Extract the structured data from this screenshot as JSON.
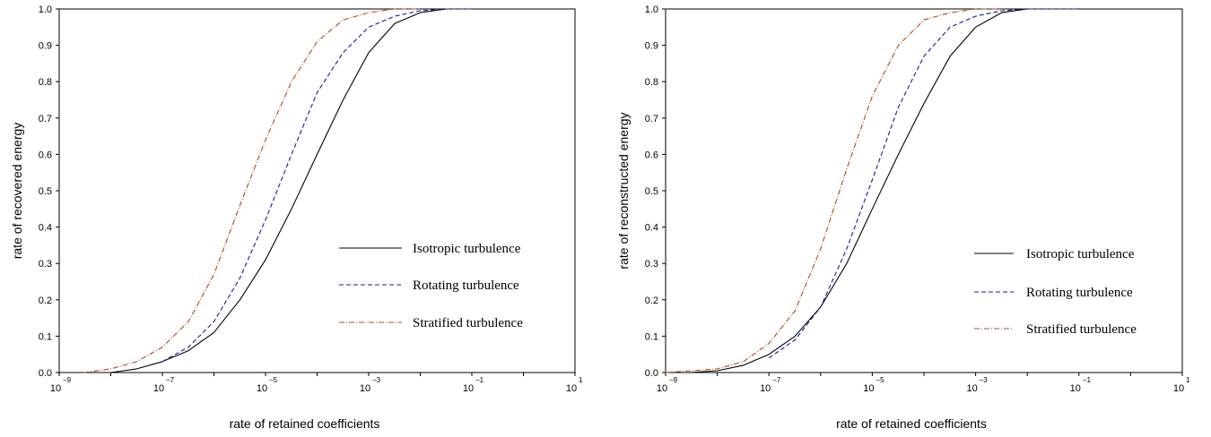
{
  "chart_data": [
    {
      "type": "line",
      "xlabel": "rate of retained coefficients",
      "ylabel": "rate of recovered energy",
      "x_scale": "log",
      "xlim": [
        1e-09,
        10
      ],
      "ylim": [
        0,
        1.0
      ],
      "x_tick_labels": [
        {
          "base": "10",
          "exp": "−9"
        },
        {
          "base": "10",
          "exp": "−7"
        },
        {
          "base": "10",
          "exp": "−5"
        },
        {
          "base": "10",
          "exp": "−3"
        },
        {
          "base": "10",
          "exp": "−1"
        },
        {
          "base": "10",
          "exp": "1"
        }
      ],
      "y_tick_labels": [
        "0.0",
        "0.1",
        "0.2",
        "0.3",
        "0.4",
        "0.5",
        "0.6",
        "0.7",
        "0.8",
        "0.9",
        "1.0"
      ],
      "legend_position": "lower-right",
      "grid": false,
      "series": [
        {
          "name": "Isotropic turbulence",
          "color": "#000000",
          "dash": "solid",
          "x": [
            1e-08,
            3.2e-08,
            1e-07,
            3.2e-07,
            1e-06,
            3.2e-06,
            1e-05,
            3.2e-05,
            0.0001,
            0.00032,
            0.001,
            0.0032,
            0.01,
            0.032,
            0.1,
            1
          ],
          "y": [
            0.0,
            0.01,
            0.03,
            0.06,
            0.11,
            0.2,
            0.31,
            0.45,
            0.6,
            0.75,
            0.88,
            0.96,
            0.99,
            1.0,
            1.0,
            1.0
          ]
        },
        {
          "name": "Rotating turbulence",
          "color": "#1a1aa0",
          "dash": "dashed",
          "x": [
            1e-07,
            3.2e-07,
            1e-06,
            3.2e-06,
            1e-05,
            3.2e-05,
            0.0001,
            0.00032,
            0.001,
            0.0032,
            0.01,
            0.032,
            0.1
          ],
          "y": [
            0.03,
            0.07,
            0.14,
            0.26,
            0.42,
            0.6,
            0.77,
            0.88,
            0.95,
            0.98,
            0.995,
            1.0,
            1.0
          ]
        },
        {
          "name": "Stratified turbulence",
          "color": "#b24a1a",
          "dash": "dashdot",
          "x": [
            3e-09,
            1e-08,
            3.2e-08,
            1e-07,
            3.2e-07,
            1e-06,
            3.2e-06,
            1e-05,
            3.2e-05,
            0.0001,
            0.00032,
            0.001,
            0.0032,
            0.01
          ],
          "y": [
            0.0,
            0.01,
            0.03,
            0.07,
            0.14,
            0.27,
            0.46,
            0.64,
            0.8,
            0.91,
            0.97,
            0.99,
            1.0,
            1.0
          ]
        }
      ]
    },
    {
      "type": "line",
      "xlabel": "rate of retained coefficients",
      "ylabel": "rate of reconstructed energy",
      "x_scale": "log",
      "xlim": [
        1e-09,
        10
      ],
      "ylim": [
        0,
        1.0
      ],
      "x_tick_labels": [
        {
          "base": "10",
          "exp": "−9"
        },
        {
          "base": "10",
          "exp": "−7"
        },
        {
          "base": "10",
          "exp": "−5"
        },
        {
          "base": "10",
          "exp": "−3"
        },
        {
          "base": "10",
          "exp": "−1"
        },
        {
          "base": "10",
          "exp": "1"
        }
      ],
      "y_tick_labels": [
        "0.0",
        "0.1",
        "0.2",
        "0.3",
        "0.4",
        "0.5",
        "0.6",
        "0.7",
        "0.8",
        "0.9",
        "1.0"
      ],
      "legend_position": "lower-right",
      "grid": false,
      "series": [
        {
          "name": "Isotropic turbulence",
          "color": "#000000",
          "dash": "solid",
          "x": [
            3e-09,
            1e-08,
            3.2e-08,
            1e-07,
            3.2e-07,
            1e-06,
            3.2e-06,
            1e-05,
            3.2e-05,
            0.0001,
            0.00032,
            0.001,
            0.0032,
            0.01,
            0.032,
            0.1,
            1
          ],
          "y": [
            0.0,
            0.005,
            0.02,
            0.05,
            0.1,
            0.18,
            0.3,
            0.45,
            0.6,
            0.74,
            0.87,
            0.95,
            0.99,
            1.0,
            1.0,
            1.0,
            1.0
          ]
        },
        {
          "name": "Rotating turbulence",
          "color": "#1a1aa0",
          "dash": "dashed",
          "x": [
            1e-07,
            3.2e-07,
            1e-06,
            3.2e-06,
            1e-05,
            3.2e-05,
            0.0001,
            0.00032,
            0.001,
            0.0032,
            0.01,
            0.032,
            0.1
          ],
          "y": [
            0.04,
            0.09,
            0.18,
            0.34,
            0.53,
            0.73,
            0.87,
            0.95,
            0.98,
            0.995,
            1.0,
            1.0,
            1.0
          ]
        },
        {
          "name": "Stratified turbulence",
          "color": "#b24a1a",
          "dash": "dashdot",
          "x": [
            1e-09,
            3.2e-09,
            1e-08,
            3.2e-08,
            1e-07,
            3.2e-07,
            1e-06,
            3.2e-06,
            1e-05,
            3.2e-05,
            0.0001,
            0.00032,
            0.001,
            0.0032
          ],
          "y": [
            0.0,
            0.005,
            0.01,
            0.03,
            0.08,
            0.17,
            0.34,
            0.56,
            0.76,
            0.9,
            0.97,
            0.99,
            1.0,
            1.0
          ]
        }
      ]
    }
  ]
}
